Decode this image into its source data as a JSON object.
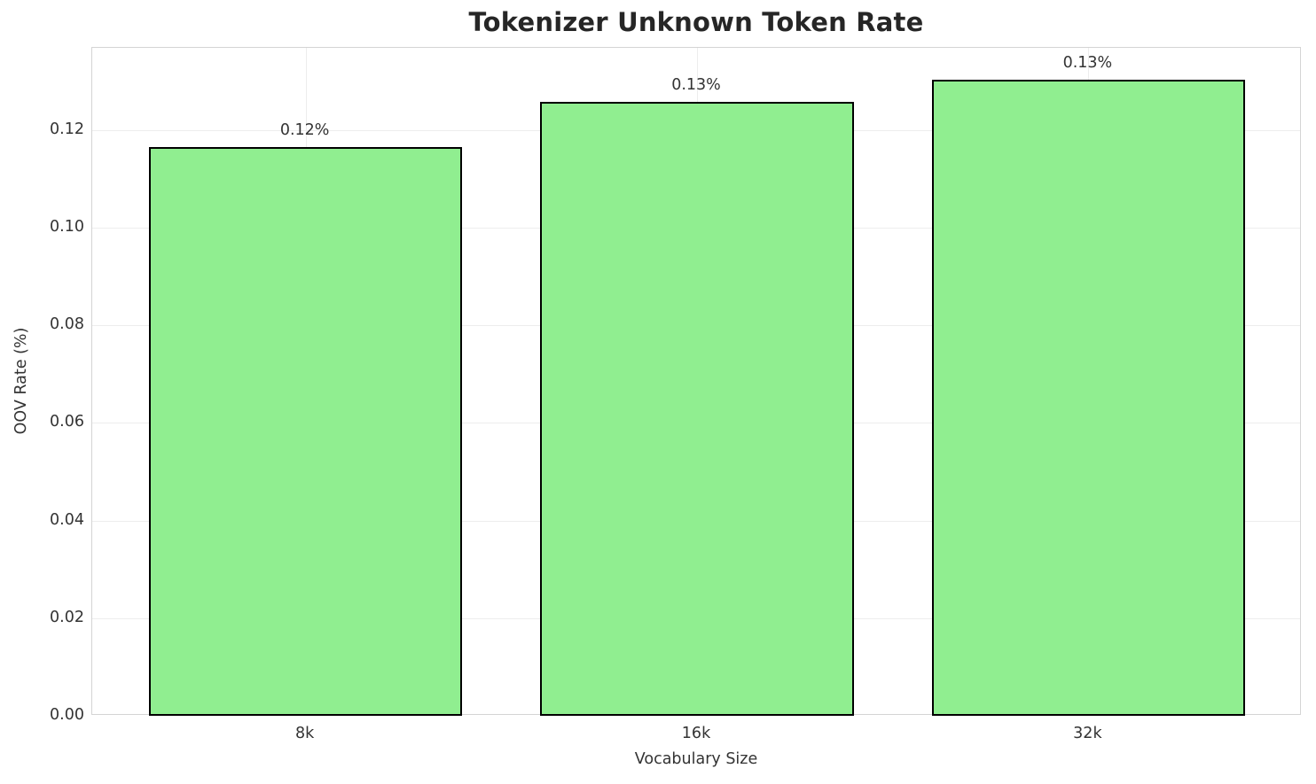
{
  "chart_data": {
    "type": "bar",
    "title": "Tokenizer Unknown Token Rate",
    "xlabel": "Vocabulary Size",
    "ylabel": "OOV Rate (%)",
    "categories": [
      "8k",
      "16k",
      "32k"
    ],
    "values": [
      0.1165,
      0.1258,
      0.1303
    ],
    "bar_labels": [
      "0.12%",
      "0.13%",
      "0.13%"
    ],
    "ylim": [
      0,
      0.1368
    ],
    "yticks": [
      0.0,
      0.02,
      0.04,
      0.06,
      0.08,
      0.1,
      0.12
    ],
    "ytick_labels": [
      "0.00",
      "0.02",
      "0.04",
      "0.06",
      "0.08",
      "0.10",
      "0.12"
    ],
    "grid": "on",
    "legend": "none",
    "bar_color": "#90EE90",
    "bar_edge_color": "#000000",
    "grid_color": "#ededed",
    "spine_color": "#d4d4d4",
    "title_color": "#262626",
    "tick_label_color": "#333333"
  }
}
